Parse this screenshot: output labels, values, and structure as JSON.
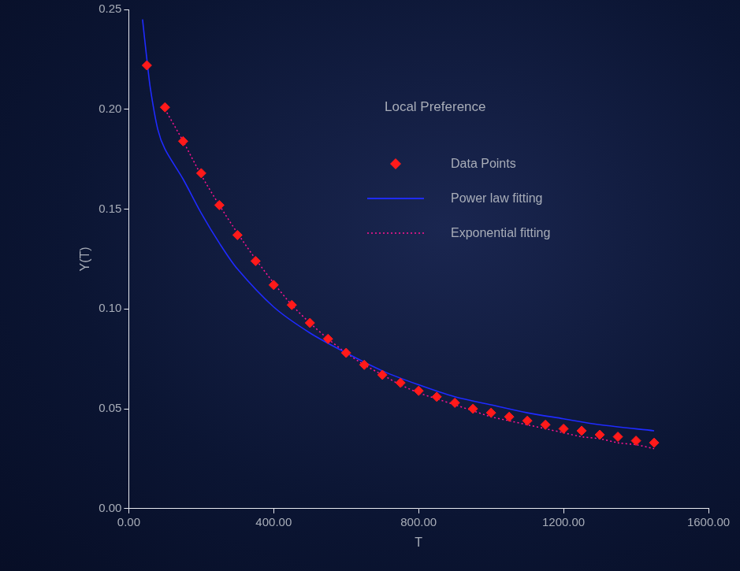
{
  "chart_data": {
    "type": "scatter",
    "legend_title": "Local Preference",
    "x_label": "T",
    "y_label": "Y(T)",
    "xlim": [
      0,
      1600
    ],
    "ylim": [
      0,
      0.25
    ],
    "xticks": [
      {
        "value": 0,
        "label": "0.00"
      },
      {
        "value": 400,
        "label": "400.00"
      },
      {
        "value": 800,
        "label": "800.00"
      },
      {
        "value": 1200,
        "label": "1200.00"
      },
      {
        "value": 1600,
        "label": "1600.00"
      }
    ],
    "yticks": [
      {
        "value": 0,
        "label": "0.00"
      },
      {
        "value": 0.05,
        "label": "0.05"
      },
      {
        "value": 0.1,
        "label": "0.10"
      },
      {
        "value": 0.15,
        "label": "0.15"
      },
      {
        "value": 0.2,
        "label": "0.20"
      },
      {
        "value": 0.25,
        "label": "0.25"
      }
    ],
    "grid": false,
    "legend": "upper right",
    "series": [
      {
        "name": "Data Points",
        "type": "scatter",
        "marker": "diamond",
        "color": "#ff1a1a",
        "x": [
          50,
          100,
          150,
          200,
          250,
          300,
          350,
          400,
          450,
          500,
          550,
          600,
          650,
          700,
          750,
          800,
          850,
          900,
          950,
          1000,
          1050,
          1100,
          1150,
          1200,
          1250,
          1300,
          1350,
          1400,
          1450
        ],
        "values": [
          0.222,
          0.201,
          0.184,
          0.168,
          0.152,
          0.137,
          0.124,
          0.112,
          0.102,
          0.093,
          0.085,
          0.078,
          0.072,
          0.067,
          0.063,
          0.059,
          0.056,
          0.053,
          0.05,
          0.048,
          0.046,
          0.044,
          0.042,
          0.04,
          0.039,
          0.037,
          0.036,
          0.034,
          0.033
        ]
      },
      {
        "name": "Power law fitting",
        "type": "line",
        "line_style": "solid",
        "color": "#1f2bff",
        "x": [
          38,
          50,
          60,
          80,
          100,
          150,
          200,
          250,
          300,
          400,
          500,
          600,
          700,
          800,
          900,
          1000,
          1100,
          1200,
          1300,
          1450
        ],
        "values": [
          0.245,
          0.225,
          0.21,
          0.19,
          0.18,
          0.165,
          0.148,
          0.133,
          0.12,
          0.101,
          0.088,
          0.078,
          0.069,
          0.062,
          0.056,
          0.052,
          0.048,
          0.045,
          0.042,
          0.039
        ]
      },
      {
        "name": "Exponential fitting",
        "type": "line",
        "line_style": "dotted",
        "color": "#ff1493",
        "x": [
          100,
          150,
          200,
          250,
          300,
          350,
          400,
          450,
          500,
          550,
          600,
          650,
          700,
          750,
          800,
          850,
          900,
          950,
          1000,
          1050,
          1100,
          1150,
          1200,
          1250,
          1300,
          1350,
          1400,
          1450
        ],
        "values": [
          0.2,
          0.184,
          0.167,
          0.152,
          0.138,
          0.125,
          0.113,
          0.102,
          0.093,
          0.085,
          0.078,
          0.072,
          0.067,
          0.062,
          0.058,
          0.055,
          0.052,
          0.049,
          0.046,
          0.044,
          0.042,
          0.04,
          0.038,
          0.036,
          0.035,
          0.033,
          0.032,
          0.03
        ]
      }
    ]
  }
}
